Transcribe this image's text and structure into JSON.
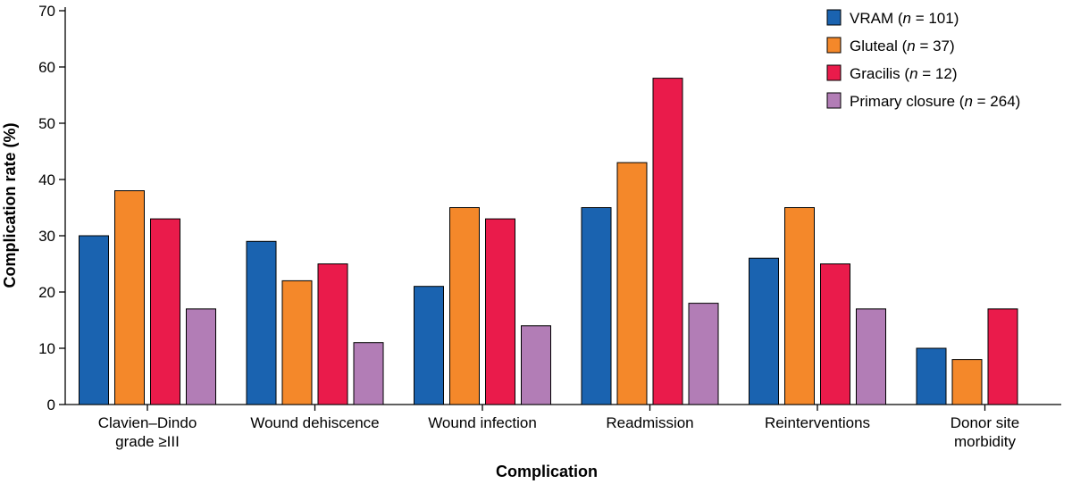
{
  "chart_data": {
    "type": "bar",
    "title": "",
    "xlabel": "Complication",
    "ylabel": "Complication rate (%)",
    "ylim": [
      0,
      70
    ],
    "yticks": [
      0,
      10,
      20,
      30,
      40,
      50,
      60,
      70
    ],
    "grid": false,
    "legend_position": "top-right",
    "categories": [
      [
        "Clavien–Dindo",
        "grade ≥III"
      ],
      [
        "Wound dehiscence"
      ],
      [
        "Wound infection"
      ],
      [
        "Readmission"
      ],
      [
        "Reinterventions"
      ],
      [
        "Donor site",
        "morbidity"
      ]
    ],
    "series": [
      {
        "name": "VRAM",
        "n_label": "n",
        "n_value": "= 101)",
        "color": "#1a63b0",
        "values": [
          30,
          29,
          21,
          35,
          26,
          10
        ]
      },
      {
        "name": "Gluteal",
        "n_label": "n",
        "n_value": "= 37)",
        "color": "#f4882a",
        "values": [
          38,
          22,
          35,
          43,
          35,
          8
        ]
      },
      {
        "name": "Gracilis",
        "n_label": "n",
        "n_value": "= 12)",
        "color": "#ea1b4b",
        "values": [
          33,
          25,
          33,
          58,
          25,
          17
        ]
      },
      {
        "name": "Primary closure",
        "n_label": "n",
        "n_value": "= 264)",
        "color": "#b27db6",
        "values": [
          17,
          11,
          14,
          18,
          17,
          null
        ]
      }
    ]
  }
}
